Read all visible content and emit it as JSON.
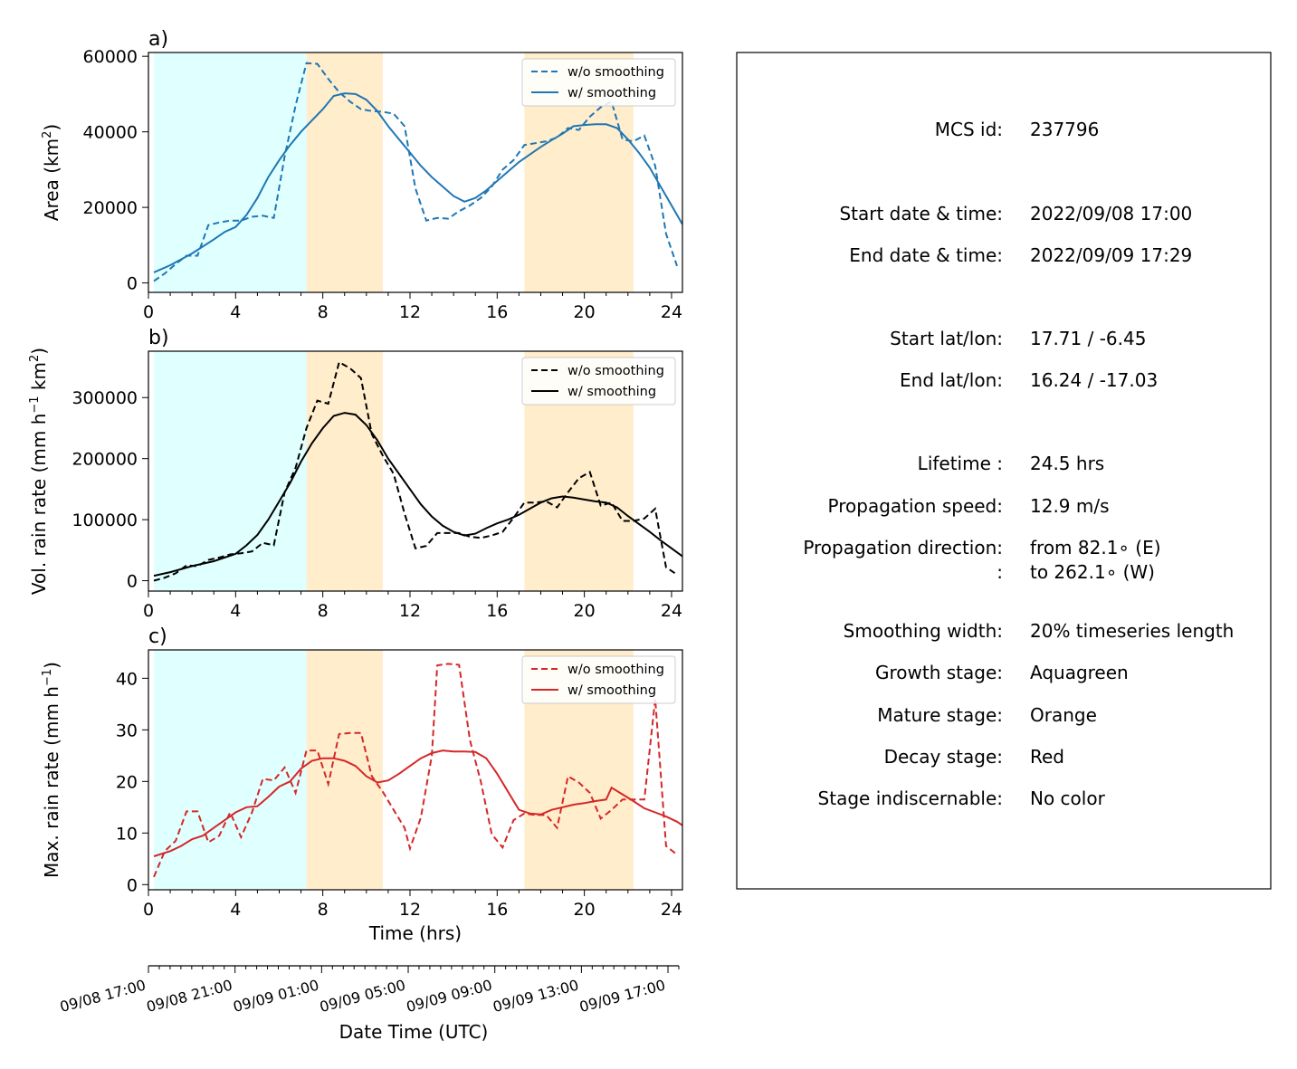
{
  "panels": [
    {
      "tag": "a)",
      "ylabel": "Area  (km",
      "ylabel_sup": "2",
      "ylabel_end": ")",
      "color": "#1f77b4",
      "ylim": [
        -2500,
        61000
      ],
      "yticks": [
        0,
        20000,
        40000,
        60000
      ],
      "ytick_labels": [
        "0",
        "20000",
        "40000",
        "60000"
      ],
      "legend": [
        "w/o smoothing",
        "w/ smoothing"
      ],
      "raw": [
        [
          0.25,
          500
        ],
        [
          0.75,
          2500
        ],
        [
          1.25,
          5000
        ],
        [
          1.75,
          7200
        ],
        [
          2.25,
          7200
        ],
        [
          2.75,
          15300
        ],
        [
          3.25,
          16000
        ],
        [
          3.75,
          16500
        ],
        [
          4.25,
          16500
        ],
        [
          4.75,
          17500
        ],
        [
          5.25,
          17800
        ],
        [
          5.75,
          17200
        ],
        [
          6.25,
          33500
        ],
        [
          6.75,
          47000
        ],
        [
          7.25,
          58200
        ],
        [
          7.75,
          58000
        ],
        [
          8.25,
          54000
        ],
        [
          8.75,
          50500
        ],
        [
          9.25,
          48000
        ],
        [
          9.75,
          46000
        ],
        [
          10.25,
          45500
        ],
        [
          10.75,
          45300
        ],
        [
          11.25,
          44800
        ],
        [
          11.75,
          41500
        ],
        [
          12.25,
          25000
        ],
        [
          12.75,
          16500
        ],
        [
          13.25,
          17200
        ],
        [
          13.75,
          17000
        ],
        [
          14.25,
          19000
        ],
        [
          14.75,
          20500
        ],
        [
          15.25,
          22500
        ],
        [
          15.75,
          25500
        ],
        [
          16.25,
          30000
        ],
        [
          16.75,
          32500
        ],
        [
          17.25,
          36500
        ],
        [
          17.75,
          37000
        ],
        [
          18.25,
          37500
        ],
        [
          18.75,
          38500
        ],
        [
          19.25,
          41000
        ],
        [
          19.75,
          40500
        ],
        [
          20.25,
          44000
        ],
        [
          20.75,
          46500
        ],
        [
          21.25,
          48000
        ],
        [
          21.75,
          38000
        ],
        [
          22.25,
          37500
        ],
        [
          22.75,
          39000
        ],
        [
          23.25,
          31000
        ],
        [
          23.75,
          13000
        ],
        [
          24.25,
          4500
        ]
      ],
      "smooth": [
        [
          0.25,
          2800
        ],
        [
          1,
          4700
        ],
        [
          2,
          7800
        ],
        [
          3,
          11500
        ],
        [
          3.5,
          13500
        ],
        [
          4,
          14800
        ],
        [
          4.5,
          18000
        ],
        [
          5,
          22500
        ],
        [
          5.5,
          28000
        ],
        [
          6,
          32500
        ],
        [
          6.5,
          36500
        ],
        [
          7,
          40000
        ],
        [
          7.5,
          43000
        ],
        [
          8,
          46000
        ],
        [
          8.5,
          49500
        ],
        [
          9,
          50200
        ],
        [
          9.5,
          50000
        ],
        [
          10,
          48500
        ],
        [
          10.5,
          45500
        ],
        [
          11,
          41500
        ],
        [
          11.5,
          38000
        ],
        [
          12,
          34500
        ],
        [
          12.5,
          31000
        ],
        [
          13,
          28000
        ],
        [
          13.5,
          25500
        ],
        [
          14,
          23000
        ],
        [
          14.5,
          21500
        ],
        [
          15,
          22500
        ],
        [
          15.5,
          24500
        ],
        [
          16,
          27000
        ],
        [
          16.5,
          29500
        ],
        [
          17,
          32000
        ],
        [
          17.5,
          34000
        ],
        [
          18,
          36000
        ],
        [
          18.5,
          37800
        ],
        [
          19,
          39500
        ],
        [
          19.5,
          41500
        ],
        [
          20,
          41800
        ],
        [
          20.5,
          42000
        ],
        [
          21,
          42000
        ],
        [
          21.5,
          41000
        ],
        [
          22,
          38000
        ],
        [
          22.5,
          34500
        ],
        [
          23,
          30500
        ],
        [
          23.5,
          25500
        ],
        [
          24,
          20500
        ],
        [
          24.5,
          15500
        ]
      ]
    },
    {
      "tag": "b)",
      "ylabel": "Vol. rain rate (mm h",
      "ylabel_sup": "−1",
      "ylabel_mid": " km",
      "ylabel_sup2": "2",
      "ylabel_end": ")",
      "color": "#000000",
      "ylim": [
        -17000,
        376000
      ],
      "yticks": [
        0,
        100000,
        200000,
        300000
      ],
      "ytick_labels": [
        "0",
        "100000",
        "200000",
        "300000"
      ],
      "legend": [
        "w/o smoothing",
        "w/ smoothing"
      ],
      "raw": [
        [
          0.25,
          0
        ],
        [
          0.75,
          5000
        ],
        [
          1.25,
          12000
        ],
        [
          1.75,
          25000
        ],
        [
          2.25,
          24000
        ],
        [
          2.75,
          34000
        ],
        [
          3.25,
          38000
        ],
        [
          3.75,
          43000
        ],
        [
          4.25,
          45000
        ],
        [
          4.75,
          48000
        ],
        [
          5.25,
          62000
        ],
        [
          5.75,
          58000
        ],
        [
          6.25,
          145000
        ],
        [
          6.75,
          185000
        ],
        [
          7.25,
          250000
        ],
        [
          7.75,
          295000
        ],
        [
          8.25,
          290000
        ],
        [
          8.75,
          358000
        ],
        [
          9.25,
          348000
        ],
        [
          9.75,
          332000
        ],
        [
          10.25,
          240000
        ],
        [
          10.75,
          205000
        ],
        [
          11.25,
          175000
        ],
        [
          11.75,
          110000
        ],
        [
          12.25,
          53000
        ],
        [
          12.75,
          57000
        ],
        [
          13.25,
          78000
        ],
        [
          13.75,
          78000
        ],
        [
          14.25,
          78000
        ],
        [
          14.75,
          72000
        ],
        [
          15.25,
          70000
        ],
        [
          15.75,
          74000
        ],
        [
          16.25,
          80000
        ],
        [
          16.75,
          103000
        ],
        [
          17.25,
          128000
        ],
        [
          17.75,
          128000
        ],
        [
          18.25,
          130000
        ],
        [
          18.75,
          120000
        ],
        [
          19.25,
          145000
        ],
        [
          19.75,
          168000
        ],
        [
          20.25,
          178000
        ],
        [
          20.75,
          123000
        ],
        [
          21.25,
          128000
        ],
        [
          21.75,
          98000
        ],
        [
          22.25,
          98000
        ],
        [
          22.75,
          102000
        ],
        [
          23.25,
          118000
        ],
        [
          23.75,
          22000
        ],
        [
          24.25,
          10000
        ]
      ],
      "smooth": [
        [
          0.25,
          8000
        ],
        [
          1,
          14000
        ],
        [
          2,
          24000
        ],
        [
          3,
          32000
        ],
        [
          4,
          44000
        ],
        [
          4.5,
          58000
        ],
        [
          5,
          75000
        ],
        [
          5.5,
          100000
        ],
        [
          6,
          130000
        ],
        [
          6.5,
          160000
        ],
        [
          7,
          195000
        ],
        [
          7.5,
          225000
        ],
        [
          8,
          250000
        ],
        [
          8.5,
          270000
        ],
        [
          9,
          275000
        ],
        [
          9.5,
          272000
        ],
        [
          10,
          255000
        ],
        [
          10.5,
          230000
        ],
        [
          11,
          200000
        ],
        [
          11.5,
          175000
        ],
        [
          12,
          150000
        ],
        [
          12.5,
          125000
        ],
        [
          13,
          105000
        ],
        [
          13.5,
          90000
        ],
        [
          14,
          80000
        ],
        [
          14.5,
          74000
        ],
        [
          15,
          77000
        ],
        [
          15.5,
          86000
        ],
        [
          16,
          94000
        ],
        [
          16.5,
          100000
        ],
        [
          17,
          108000
        ],
        [
          17.5,
          118000
        ],
        [
          18,
          128000
        ],
        [
          18.5,
          135000
        ],
        [
          19,
          138000
        ],
        [
          19.5,
          136000
        ],
        [
          20,
          133000
        ],
        [
          20.5,
          130000
        ],
        [
          21,
          128000
        ],
        [
          21.5,
          120000
        ],
        [
          22,
          106000
        ],
        [
          22.5,
          93000
        ],
        [
          23,
          80000
        ],
        [
          23.5,
          66000
        ],
        [
          24,
          53000
        ],
        [
          24.5,
          40000
        ]
      ]
    },
    {
      "tag": "c)",
      "ylabel": "Max. rain rate  (mm h",
      "ylabel_sup": "−1",
      "ylabel_end": ")",
      "color": "#d62728",
      "ylim": [
        -1,
        45.5
      ],
      "yticks": [
        0,
        10,
        20,
        30,
        40
      ],
      "ytick_labels": [
        "0",
        "10",
        "20",
        "30",
        "40"
      ],
      "legend": [
        "w/o smoothing",
        "w/ smoothing"
      ],
      "raw": [
        [
          0.25,
          1.5
        ],
        [
          0.75,
          6.5
        ],
        [
          1.25,
          8.5
        ],
        [
          1.75,
          14.2
        ],
        [
          2.25,
          14.2
        ],
        [
          2.75,
          8.2
        ],
        [
          3.25,
          9.5
        ],
        [
          3.75,
          14
        ],
        [
          4.25,
          9.2
        ],
        [
          4.75,
          14
        ],
        [
          5.25,
          20.5
        ],
        [
          5.75,
          20.2
        ],
        [
          6.25,
          22.7
        ],
        [
          6.75,
          17.8
        ],
        [
          7.25,
          26
        ],
        [
          7.75,
          26
        ],
        [
          8.25,
          19.5
        ],
        [
          8.75,
          29.2
        ],
        [
          9.25,
          29.4
        ],
        [
          9.75,
          29.4
        ],
        [
          10.25,
          21
        ],
        [
          10.75,
          18
        ],
        [
          11.25,
          14.5
        ],
        [
          11.75,
          11
        ],
        [
          12,
          7
        ],
        [
          12.5,
          13
        ],
        [
          13,
          25
        ],
        [
          13.25,
          42.5
        ],
        [
          13.75,
          42.8
        ],
        [
          14.25,
          42.6
        ],
        [
          14.75,
          28
        ],
        [
          15.25,
          20
        ],
        [
          15.75,
          9.8
        ],
        [
          16.25,
          7.2
        ],
        [
          16.75,
          12.5
        ],
        [
          17.25,
          13.8
        ],
        [
          17.75,
          13.5
        ],
        [
          18.25,
          13.5
        ],
        [
          18.75,
          11
        ],
        [
          19.25,
          21
        ],
        [
          19.75,
          19.8
        ],
        [
          20.25,
          17.8
        ],
        [
          20.75,
          12.8
        ],
        [
          21.25,
          14.5
        ],
        [
          21.75,
          16.5
        ],
        [
          22.25,
          16.5
        ],
        [
          22.75,
          16.5
        ],
        [
          23.25,
          36
        ],
        [
          23.75,
          7.5
        ],
        [
          24.25,
          5.8
        ]
      ],
      "smooth": [
        [
          0.25,
          5.5
        ],
        [
          1,
          6.5
        ],
        [
          1.5,
          7.5
        ],
        [
          2,
          8.8
        ],
        [
          2.5,
          9.5
        ],
        [
          3,
          11
        ],
        [
          3.5,
          12.5
        ],
        [
          4,
          14
        ],
        [
          4.5,
          15
        ],
        [
          5,
          15.2
        ],
        [
          5.5,
          17
        ],
        [
          6,
          19
        ],
        [
          6.5,
          20
        ],
        [
          7,
          22.5
        ],
        [
          7.5,
          24
        ],
        [
          8,
          24.5
        ],
        [
          8.5,
          24.5
        ],
        [
          9,
          24
        ],
        [
          9.5,
          23
        ],
        [
          10,
          21
        ],
        [
          10.5,
          19.8
        ],
        [
          11,
          20.2
        ],
        [
          11.5,
          21.5
        ],
        [
          12,
          23
        ],
        [
          12.5,
          24.5
        ],
        [
          13,
          25.5
        ],
        [
          13.5,
          26
        ],
        [
          14,
          25.8
        ],
        [
          14.5,
          25.8
        ],
        [
          15,
          25.7
        ],
        [
          15.5,
          24.5
        ],
        [
          16,
          21.5
        ],
        [
          16.5,
          18
        ],
        [
          17,
          14.5
        ],
        [
          17.5,
          13.8
        ],
        [
          18,
          13.6
        ],
        [
          18.5,
          14.5
        ],
        [
          19,
          15
        ],
        [
          19.5,
          15.5
        ],
        [
          20,
          15.8
        ],
        [
          20.5,
          16.2
        ],
        [
          21,
          16.5
        ],
        [
          21.25,
          18.8
        ],
        [
          21.75,
          17.5
        ],
        [
          22.25,
          16.2
        ],
        [
          22.75,
          14.8
        ],
        [
          23.25,
          14
        ],
        [
          23.75,
          13.2
        ],
        [
          24.25,
          12.2
        ],
        [
          24.5,
          11.5
        ]
      ]
    }
  ],
  "x_axis": {
    "xlim": [
      0,
      24.5
    ],
    "ticks": [
      0,
      4,
      8,
      12,
      16,
      20,
      24
    ],
    "tick_labels": [
      "0",
      "4",
      "8",
      "12",
      "16",
      "20",
      "24"
    ],
    "xlabel": "Time (hrs)"
  },
  "stages": {
    "growth": {
      "x0": 0.25,
      "x1": 7.25,
      "color": "#e0ffff"
    },
    "mature": [
      {
        "x0": 7.25,
        "x1": 10.75,
        "color": "#ffedcc"
      },
      {
        "x0": 17.25,
        "x1": 22.25,
        "color": "#ffedcc"
      }
    ]
  },
  "date_axis": {
    "labels": [
      "09/08 17:00",
      "09/08 21:00",
      "09/09 01:00",
      "09/09 05:00",
      "09/09 09:00",
      "09/09 13:00",
      "09/09 17:00"
    ],
    "label_hours": [
      0,
      4,
      8,
      12,
      16,
      20,
      24
    ],
    "xlabel": "Date Time (UTC)"
  },
  "info": {
    "rows": [
      {
        "key": "MCS id:",
        "value": "237796"
      },
      {
        "key": "Start date & time:",
        "value": "2022/09/08 17:00"
      },
      {
        "key": "End date & time:",
        "value": "2022/09/09 17:29"
      },
      {
        "key": "Start lat/lon:",
        "value": "17.71 / -6.45"
      },
      {
        "key": "End lat/lon:",
        "value": "16.24 / -17.03"
      },
      {
        "key": "Lifetime :",
        "value": "24.5 hrs"
      },
      {
        "key": "Propagation speed:",
        "value": "12.9 m/s"
      },
      {
        "key": "Propagation direction:",
        "value": "from  82.1∘ (E)"
      },
      {
        "key": ":",
        "value": "to   262.1∘ (W)"
      },
      {
        "key": "Smoothing width:",
        "value": "20% timeseries length"
      },
      {
        "key": "Growth stage:",
        "value": "Aquagreen"
      },
      {
        "key": "Mature stage:",
        "value": "Orange"
      },
      {
        "key": "Decay stage:",
        "value": "Red"
      },
      {
        "key": "Stage indiscernable:",
        "value": "No color"
      }
    ]
  },
  "chart_data": [
    {
      "type": "line",
      "panel": "a)",
      "ylabel": "Area  (km2)",
      "xlabel": "",
      "series": [
        {
          "name": "w/o smoothing",
          "ref": "panels.0.raw"
        },
        {
          "name": "w/ smoothing",
          "ref": "panels.0.smooth"
        }
      ]
    },
    {
      "type": "line",
      "panel": "b)",
      "ylabel": "Vol. rain rate (mm h−1 km2)",
      "xlabel": "",
      "series": [
        {
          "name": "w/o smoothing",
          "ref": "panels.1.raw"
        },
        {
          "name": "w/ smoothing",
          "ref": "panels.1.smooth"
        }
      ]
    },
    {
      "type": "line",
      "panel": "c)",
      "ylabel": "Max. rain rate  (mm h−1)",
      "xlabel": "Time (hrs)",
      "series": [
        {
          "name": "w/o smoothing",
          "ref": "panels.2.raw"
        },
        {
          "name": "w/ smoothing",
          "ref": "panels.2.smooth"
        }
      ]
    }
  ]
}
